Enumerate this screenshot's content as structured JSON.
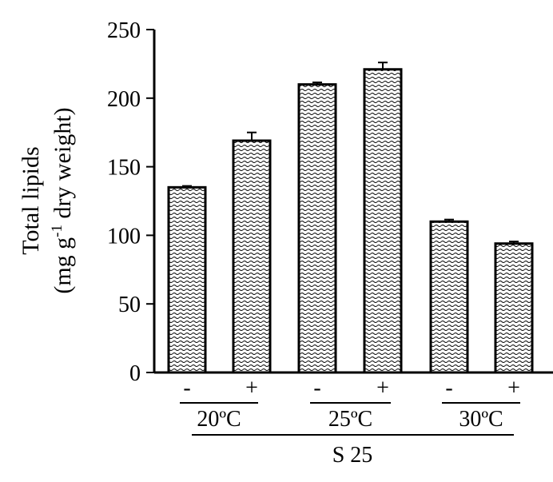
{
  "chart_data": {
    "type": "bar",
    "ylabel": "Total lipids",
    "ylabel_unit_prefix": "(mg g",
    "ylabel_unit_sup": "-1",
    "ylabel_unit_suffix": " dry weight)",
    "ylim": [
      0,
      250
    ],
    "yticks": [
      "0",
      "50",
      "100",
      "150",
      "200",
      "250"
    ],
    "grid": false,
    "pattern": "wavy-hatch",
    "categories": [
      "-",
      "+",
      "-",
      "+",
      "-",
      "+"
    ],
    "values": [
      135,
      169,
      210,
      221,
      110,
      94
    ],
    "errors": [
      1,
      6,
      1.5,
      5,
      1.5,
      1.5
    ],
    "groups": [
      "20ºC",
      "25ºC",
      "30ºC"
    ],
    "overall_label": "S 25",
    "colors": {
      "bar_fill": "#ffffff",
      "stroke": "#000000"
    }
  }
}
